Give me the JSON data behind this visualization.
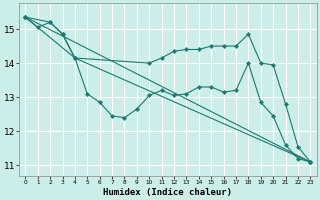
{
  "xlabel": "Humidex (Indice chaleur)",
  "background_color": "#cceee8",
  "grid_color": "#ffffff",
  "line_color": "#1a7a6e",
  "xlim": [
    -0.5,
    23.5
  ],
  "ylim": [
    10.7,
    15.75
  ],
  "yticks": [
    11,
    12,
    13,
    14,
    15
  ],
  "xticks": [
    0,
    1,
    2,
    3,
    4,
    5,
    6,
    7,
    8,
    9,
    10,
    11,
    12,
    13,
    14,
    15,
    16,
    17,
    18,
    19,
    20,
    21,
    22,
    23
  ],
  "series": [
    {
      "x": [
        0,
        1,
        2,
        3,
        4,
        5,
        6,
        7,
        8,
        9,
        10,
        11,
        12,
        13,
        14,
        15,
        16,
        17,
        18,
        19,
        20,
        21,
        22,
        23
      ],
      "y": [
        15.35,
        15.05,
        15.2,
        14.85,
        14.15,
        13.1,
        12.85,
        12.45,
        12.4,
        12.65,
        13.05,
        13.2,
        13.05,
        13.1,
        13.3,
        13.3,
        13.15,
        13.2,
        14.0,
        12.85,
        12.45,
        11.6,
        11.2,
        11.1
      ]
    },
    {
      "x": [
        0,
        2,
        3,
        4,
        10,
        11,
        12,
        13,
        14,
        15,
        16,
        17,
        18,
        19,
        20,
        21,
        22,
        23
      ],
      "y": [
        15.35,
        15.2,
        14.85,
        14.15,
        14.0,
        14.15,
        14.35,
        14.4,
        14.4,
        14.5,
        14.5,
        14.5,
        14.85,
        14.0,
        13.95,
        12.8,
        11.55,
        11.1
      ]
    },
    {
      "x": [
        0,
        23
      ],
      "y": [
        15.35,
        11.1
      ]
    },
    {
      "x": [
        0,
        4,
        23
      ],
      "y": [
        15.35,
        14.15,
        11.1
      ]
    }
  ]
}
